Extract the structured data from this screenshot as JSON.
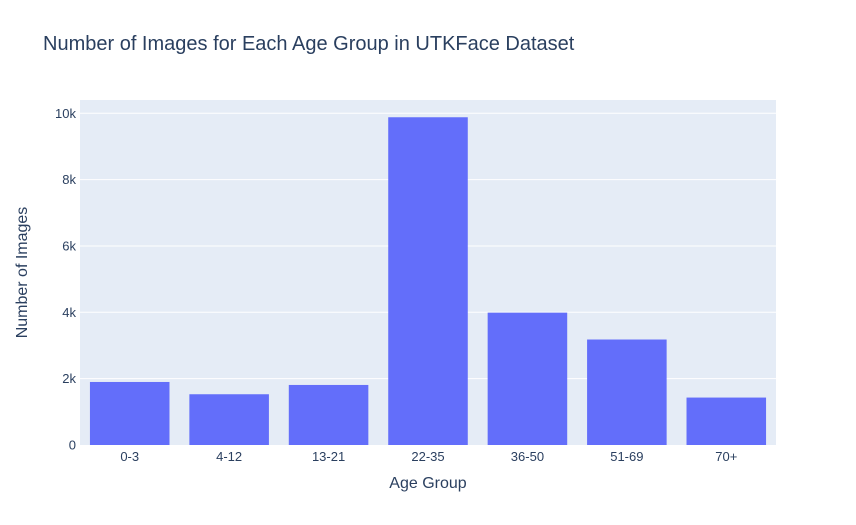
{
  "chart_data": {
    "type": "bar",
    "title": "Number of Images for Each Age Group in UTKFace Dataset",
    "xlabel": "Age Group",
    "ylabel": "Number of Images",
    "categories": [
      "0-3",
      "4-12",
      "13-21",
      "22-35",
      "36-50",
      "51-69",
      "70+"
    ],
    "values": [
      1900,
      1530,
      1810,
      9880,
      3990,
      3180,
      1430
    ],
    "ylim": [
      0,
      10400
    ],
    "yticks": [
      0,
      2000,
      4000,
      6000,
      8000,
      10000
    ],
    "ytick_labels": [
      "0",
      "2k",
      "4k",
      "6k",
      "8k",
      "10k"
    ],
    "grid": true,
    "colors": {
      "bar": "#636efa",
      "plot_background": "#e5ecf6",
      "grid": "#ffffff",
      "text": "#2a3f5f"
    }
  }
}
